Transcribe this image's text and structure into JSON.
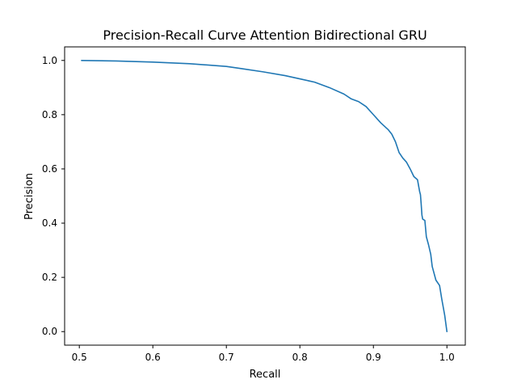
{
  "chart_data": {
    "type": "line",
    "title": "Precision-Recall Curve Attention Bidirectional GRU",
    "xlabel": "Recall",
    "ylabel": "Precision",
    "xlim": [
      0.48,
      1.025
    ],
    "ylim": [
      -0.05,
      1.05
    ],
    "xticks": [
      0.5,
      0.6,
      0.7,
      0.8,
      0.9,
      1.0
    ],
    "xtick_labels": [
      "0.5",
      "0.6",
      "0.7",
      "0.8",
      "0.9",
      "1.0"
    ],
    "yticks": [
      0.0,
      0.2,
      0.4,
      0.6,
      0.8,
      1.0
    ],
    "ytick_labels": [
      "0.0",
      "0.2",
      "0.4",
      "0.6",
      "0.8",
      "1.0"
    ],
    "grid": false,
    "legend": false,
    "series": [
      {
        "color": "#1f77b4",
        "x": [
          0.503,
          0.55,
          0.6,
          0.65,
          0.7,
          0.72,
          0.75,
          0.78,
          0.8,
          0.82,
          0.84,
          0.86,
          0.87,
          0.88,
          0.89,
          0.9,
          0.91,
          0.92,
          0.925,
          0.93,
          0.935,
          0.94,
          0.945,
          0.95,
          0.955,
          0.96,
          0.962,
          0.963,
          0.964,
          0.965,
          0.966,
          0.967,
          0.97,
          0.972,
          0.975,
          0.978,
          0.98,
          0.985,
          0.99,
          0.993,
          0.997,
          1.0
        ],
        "y": [
          1.0,
          0.998,
          0.994,
          0.988,
          0.978,
          0.97,
          0.958,
          0.944,
          0.932,
          0.92,
          0.9,
          0.876,
          0.858,
          0.848,
          0.83,
          0.8,
          0.77,
          0.745,
          0.728,
          0.7,
          0.66,
          0.64,
          0.625,
          0.6,
          0.572,
          0.56,
          0.53,
          0.515,
          0.505,
          0.47,
          0.43,
          0.415,
          0.41,
          0.35,
          0.32,
          0.285,
          0.24,
          0.19,
          0.17,
          0.12,
          0.06,
          0.0
        ]
      }
    ]
  }
}
